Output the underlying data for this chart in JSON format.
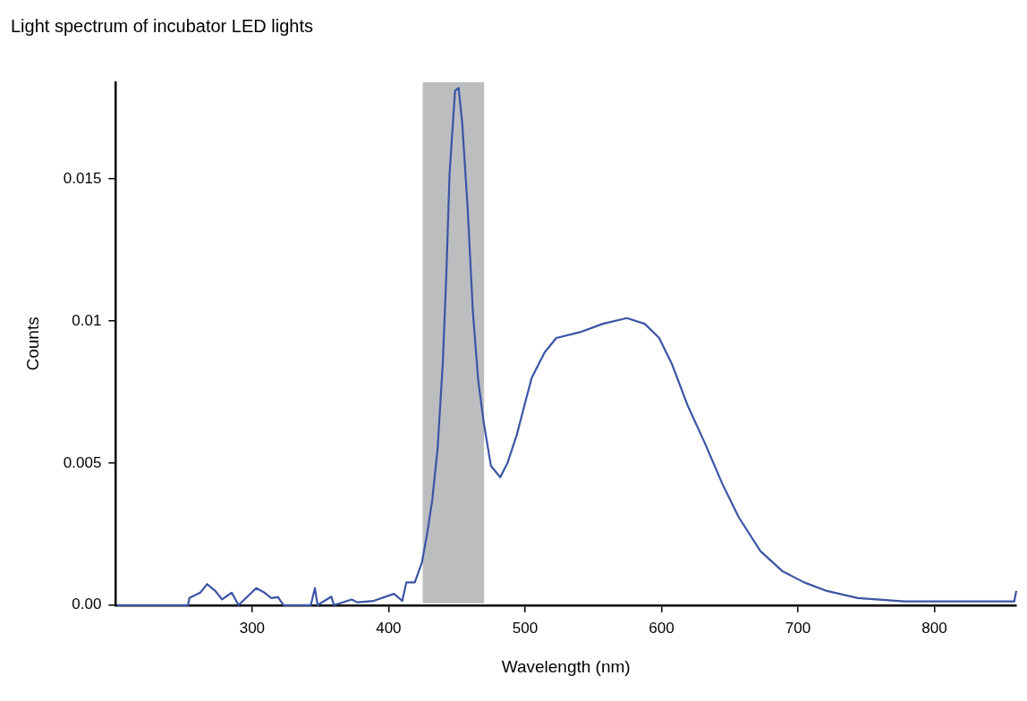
{
  "chart_data": {
    "type": "line",
    "title": "Light spectrum of incubator LED lights",
    "xlabel": "Wavelength (nm)",
    "ylabel": "Counts",
    "x": [
      201,
      253,
      254,
      262,
      267,
      273,
      278,
      285,
      290,
      303,
      309,
      314,
      319,
      323,
      343,
      346,
      348,
      358,
      360,
      373,
      377,
      389,
      404,
      410,
      413,
      419.2,
      424.4,
      428.2,
      432,
      435.9,
      439.7,
      442.2,
      444.7,
      448.7,
      451.3,
      453.9,
      457.9,
      461.8,
      465.7,
      469.8,
      475,
      481.8,
      487.1,
      494,
      499.4,
      504.9,
      514.4,
      522.9,
      539.9,
      557.1,
      574.6,
      587.7,
      598.3,
      607.5,
      619.4,
      631.8,
      644.3,
      656.5,
      672.5,
      688.5,
      704.6,
      721.2,
      743.9,
      777.9,
      858.5,
      860
    ],
    "values": [
      0,
      0,
      0.00025,
      0.00044,
      0.00074,
      0.0005,
      0.0002,
      0.00044,
      0,
      0.0006,
      0.00044,
      0.00025,
      0.00028,
      0,
      0,
      0.0006,
      0,
      0.0003,
      0,
      0.0002,
      0.0001,
      0.00015,
      0.0004,
      0.00015,
      0.0008,
      0.0008,
      0.0015,
      0.0025,
      0.0037,
      0.0055,
      0.0085,
      0.0115,
      0.0152,
      0.0181,
      0.0182,
      0.017,
      0.014,
      0.0103,
      0.0079,
      0.0064,
      0.0049,
      0.0045,
      0.005,
      0.006,
      0.007,
      0.008,
      0.0089,
      0.0094,
      0.0096,
      0.0099,
      0.0101,
      0.0099,
      0.0094,
      0.0085,
      0.007,
      0.0057,
      0.0043,
      0.0031,
      0.0019,
      0.0012,
      0.0008,
      0.0005,
      0.00025,
      0.00013,
      0.00013,
      0.0005
    ],
    "color": "#3b54a5",
    "xlim": [
      200,
      860
    ],
    "xticks": [
      300,
      400,
      500,
      600,
      700,
      800
    ],
    "ylim": [
      0,
      0.0184
    ],
    "yticks": [
      {
        "value": 0,
        "label": "0.00"
      },
      0.005,
      0.01,
      0.015
    ],
    "bands": [
      {
        "axis": "x",
        "from": 425,
        "to": 470,
        "color": "#bcbdbf"
      }
    ],
    "grid": false,
    "legend": false,
    "marker": "none",
    "line_style": "solid"
  }
}
